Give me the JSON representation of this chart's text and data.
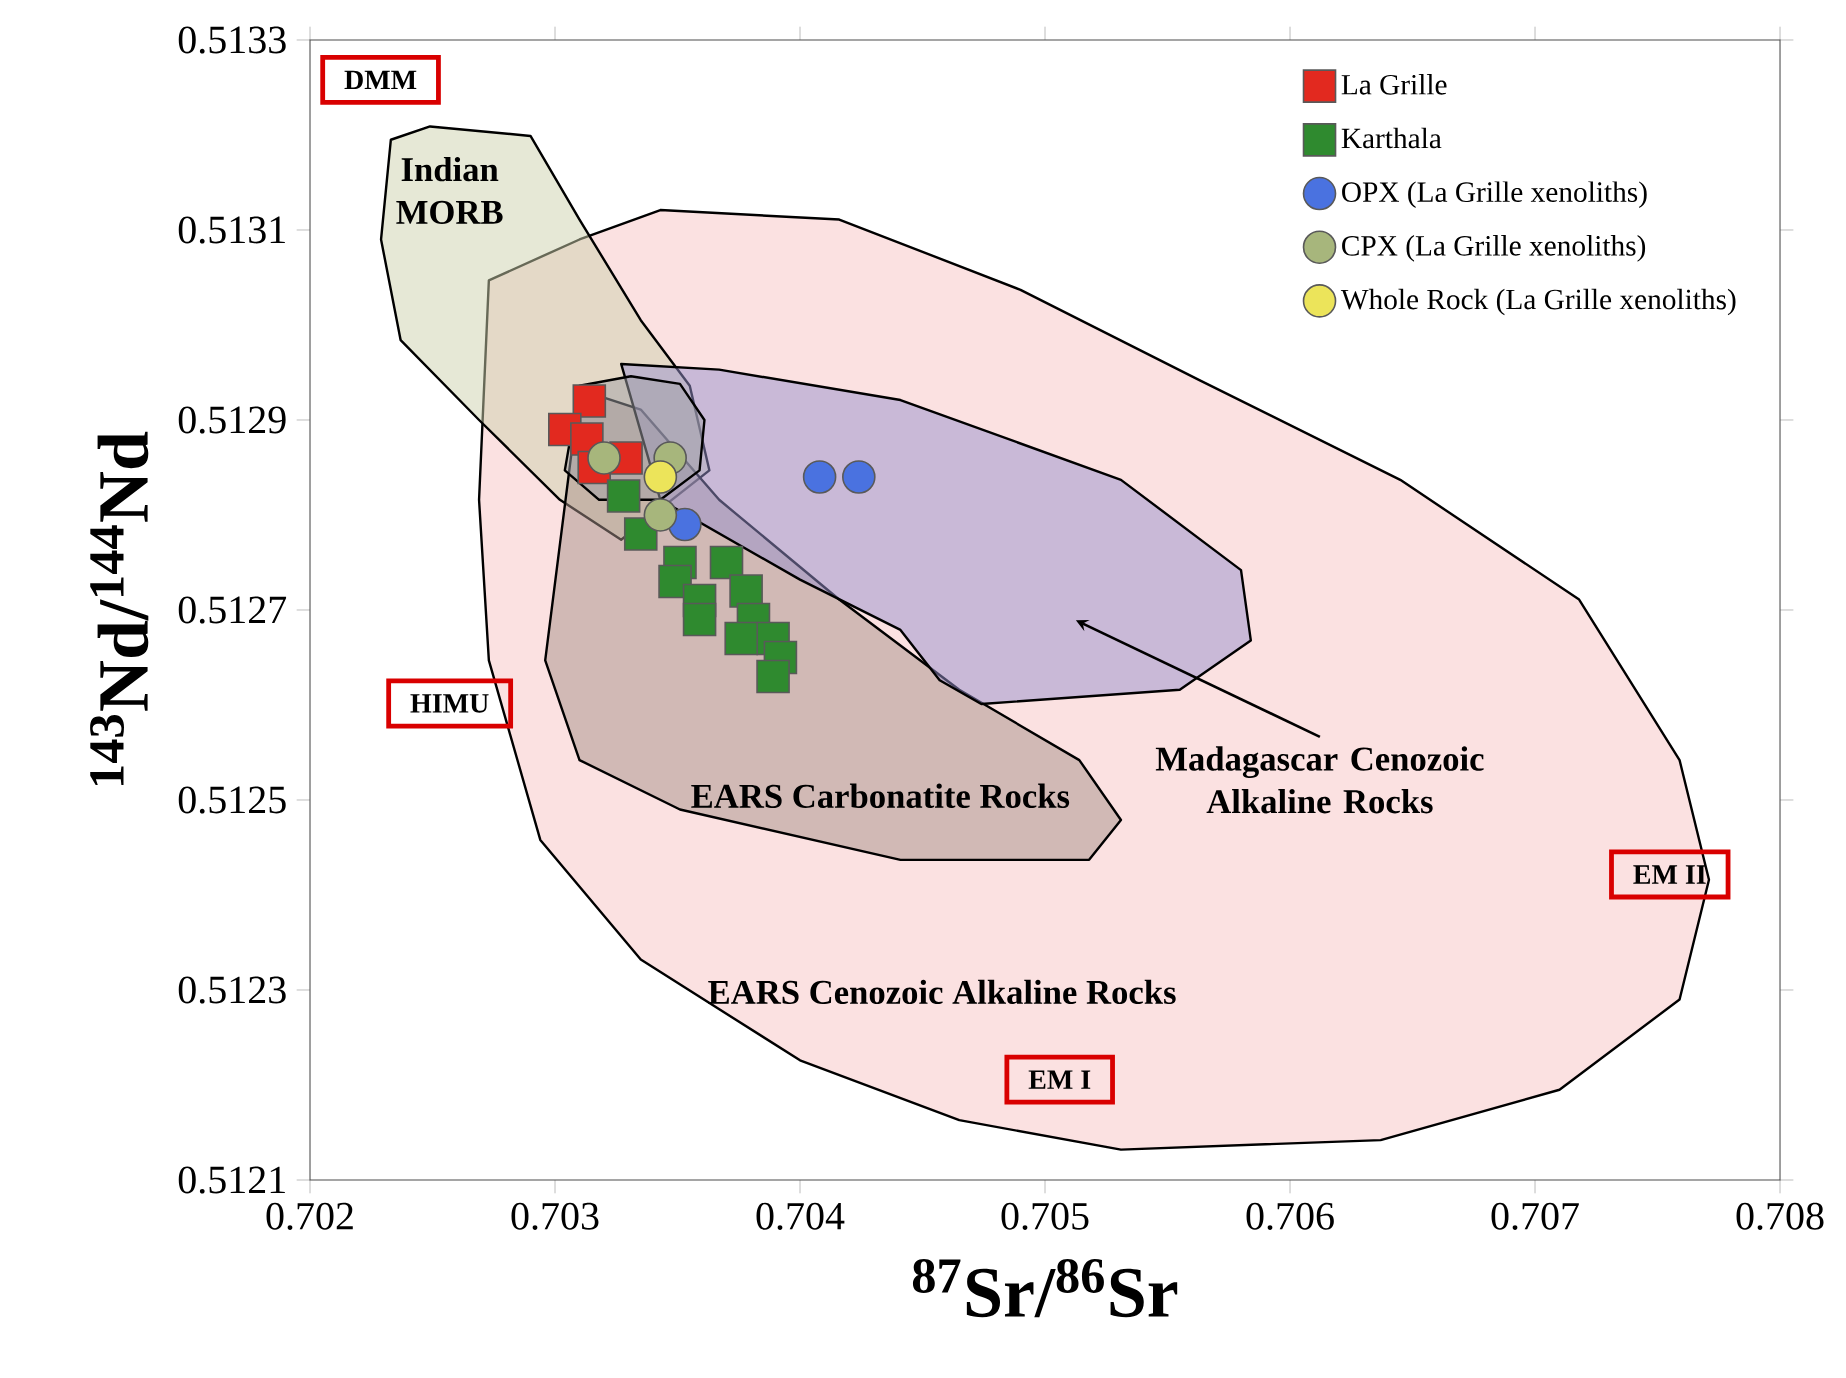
{
  "chart_data": {
    "type": "scatter",
    "xlabel": "$^{87}$Sr/$^{86}$Sr",
    "ylabel": "$^{143}$Nd/$^{144}$Nd",
    "xlim": [
      0.702,
      0.708
    ],
    "ylim": [
      0.5121,
      0.5133
    ],
    "xticks": [
      0.702,
      0.703,
      0.704,
      0.705,
      0.706,
      0.707,
      0.708
    ],
    "yticks": [
      0.5121,
      0.5123,
      0.5125,
      0.5127,
      0.5129,
      0.5131,
      0.5133
    ],
    "legend": "top right",
    "series": [
      {
        "type": "area",
        "color": "#fbe1e1",
        "x": [
          0.70273,
          0.7031,
          0.70343,
          0.70416,
          0.7049,
          0.70563,
          0.70645,
          0.70718,
          0.70759,
          0.70771,
          0.70759,
          0.7071,
          0.70637,
          0.70531,
          0.70465,
          0.704,
          0.70335,
          0.70294,
          0.70273,
          0.70269
        ],
        "values": [
          0.513047,
          0.51309,
          0.513121,
          0.513111,
          0.513037,
          0.512942,
          0.512837,
          0.512711,
          0.512542,
          0.512416,
          0.51229,
          0.512195,
          0.512142,
          0.512132,
          0.512163,
          0.512226,
          0.512332,
          0.512458,
          0.512647,
          0.512816
        ]
      },
      {
        "type": "area",
        "color": "#e6e8d6",
        "x": [
          0.70233,
          0.70249,
          0.7029,
          0.7031,
          0.70335,
          0.70355,
          0.70363,
          0.70351,
          0.70327,
          0.70302,
          0.70269,
          0.70237,
          0.70229
        ],
        "values": [
          0.513195,
          0.513209,
          0.513199,
          0.513111,
          0.513005,
          0.512936,
          0.512847,
          null,
          0.512774,
          0.512816,
          0.5129,
          0.512984,
          0.51309
        ]
      },
      {
        "type": "area",
        "color": "#d3c8c4",
        "x": [
          0.7031,
          0.70335,
          0.70367,
          0.70416,
          0.70465,
          0.70514,
          0.70531,
          0.70518,
          0.70441,
          0.70351,
          0.7031,
          0.70296
        ],
        "values": [
          0.512932,
          0.512911,
          0.512816,
          0.512711,
          0.512616,
          0.512542,
          0.512479,
          0.512437,
          0.512437,
          0.51249,
          0.512542,
          0.512647
        ]
      },
      {
        "type": "area",
        "color": "#cbc8e6",
        "x": [
          0.70327,
          0.70367,
          0.70441,
          0.70531,
          0.7058,
          0.70584,
          0.70555,
          0.70474,
          0.70457,
          0.70441,
          0.704,
          0.70343
        ],
        "values": [
          0.512959,
          0.512953,
          0.512921,
          0.512837,
          0.512742,
          0.512668,
          0.512616,
          0.512601,
          0.512626,
          0.512679,
          0.512732,
          0.512816
        ]
      },
      {
        "type": "area",
        "color": "#cfcfd2",
        "x": [
          0.70331,
          0.70351,
          0.70361,
          0.70359,
          0.70343,
          0.70318,
          0.70304,
          0.7031
        ],
        "values": [
          0.512946,
          0.512938,
          0.5129,
          0.512847,
          0.512816,
          0.512816,
          0.512847,
          0.512936
        ]
      },
      {
        "name": "La Grille",
        "type": "scatter",
        "marker": "square",
        "color": "#e2291f",
        "x": [
          0.70314,
          0.70304,
          0.70313,
          0.70316,
          0.70329
        ],
        "values": [
          0.51292,
          0.51289,
          0.51288,
          0.51285,
          0.51286
        ]
      },
      {
        "name": "Karthala",
        "type": "scatter",
        "marker": "square",
        "color": "#2f8a2f",
        "x": [
          0.70328,
          0.70335,
          0.70351,
          0.7037,
          0.70349,
          0.70359,
          0.70378,
          0.70359,
          0.70381,
          0.70389,
          0.70392,
          0.70389,
          0.70376
        ],
        "values": [
          0.51282,
          0.51278,
          0.51275,
          0.51275,
          0.51273,
          0.51271,
          0.51272,
          0.51269,
          0.51269,
          0.51267,
          0.51265,
          0.51263,
          0.51267
        ]
      },
      {
        "name": "OPX (La Grille xenoliths)",
        "type": "scatter",
        "marker": "circle",
        "color": "#4a72e0",
        "x": [
          0.70408,
          0.70424,
          0.70353
        ],
        "values": [
          0.51284,
          0.51284,
          0.51279
        ]
      },
      {
        "name": "CPX (La Grille xenoliths)",
        "type": "scatter",
        "marker": "circle",
        "color": "#a7b67c",
        "x": [
          0.7032,
          0.70347,
          0.70343
        ],
        "values": [
          0.51286,
          0.51286,
          0.5128
        ]
      },
      {
        "name": "Whole Rock (La Grille xenoliths)",
        "type": "scatter",
        "marker": "circle",
        "color": "#ece45a",
        "x": [
          0.70343
        ],
        "values": [
          0.51284
        ]
      }
    ],
    "annotations": [
      "DMM",
      "HIMU",
      "EM I",
      "EM II",
      "Indian MORB",
      "EARS Carbonatite Rocks",
      "Madagascar Cenozoic Alkaline Rocks",
      "EARS Cenozoic Alkaline Rocks"
    ]
  }
}
